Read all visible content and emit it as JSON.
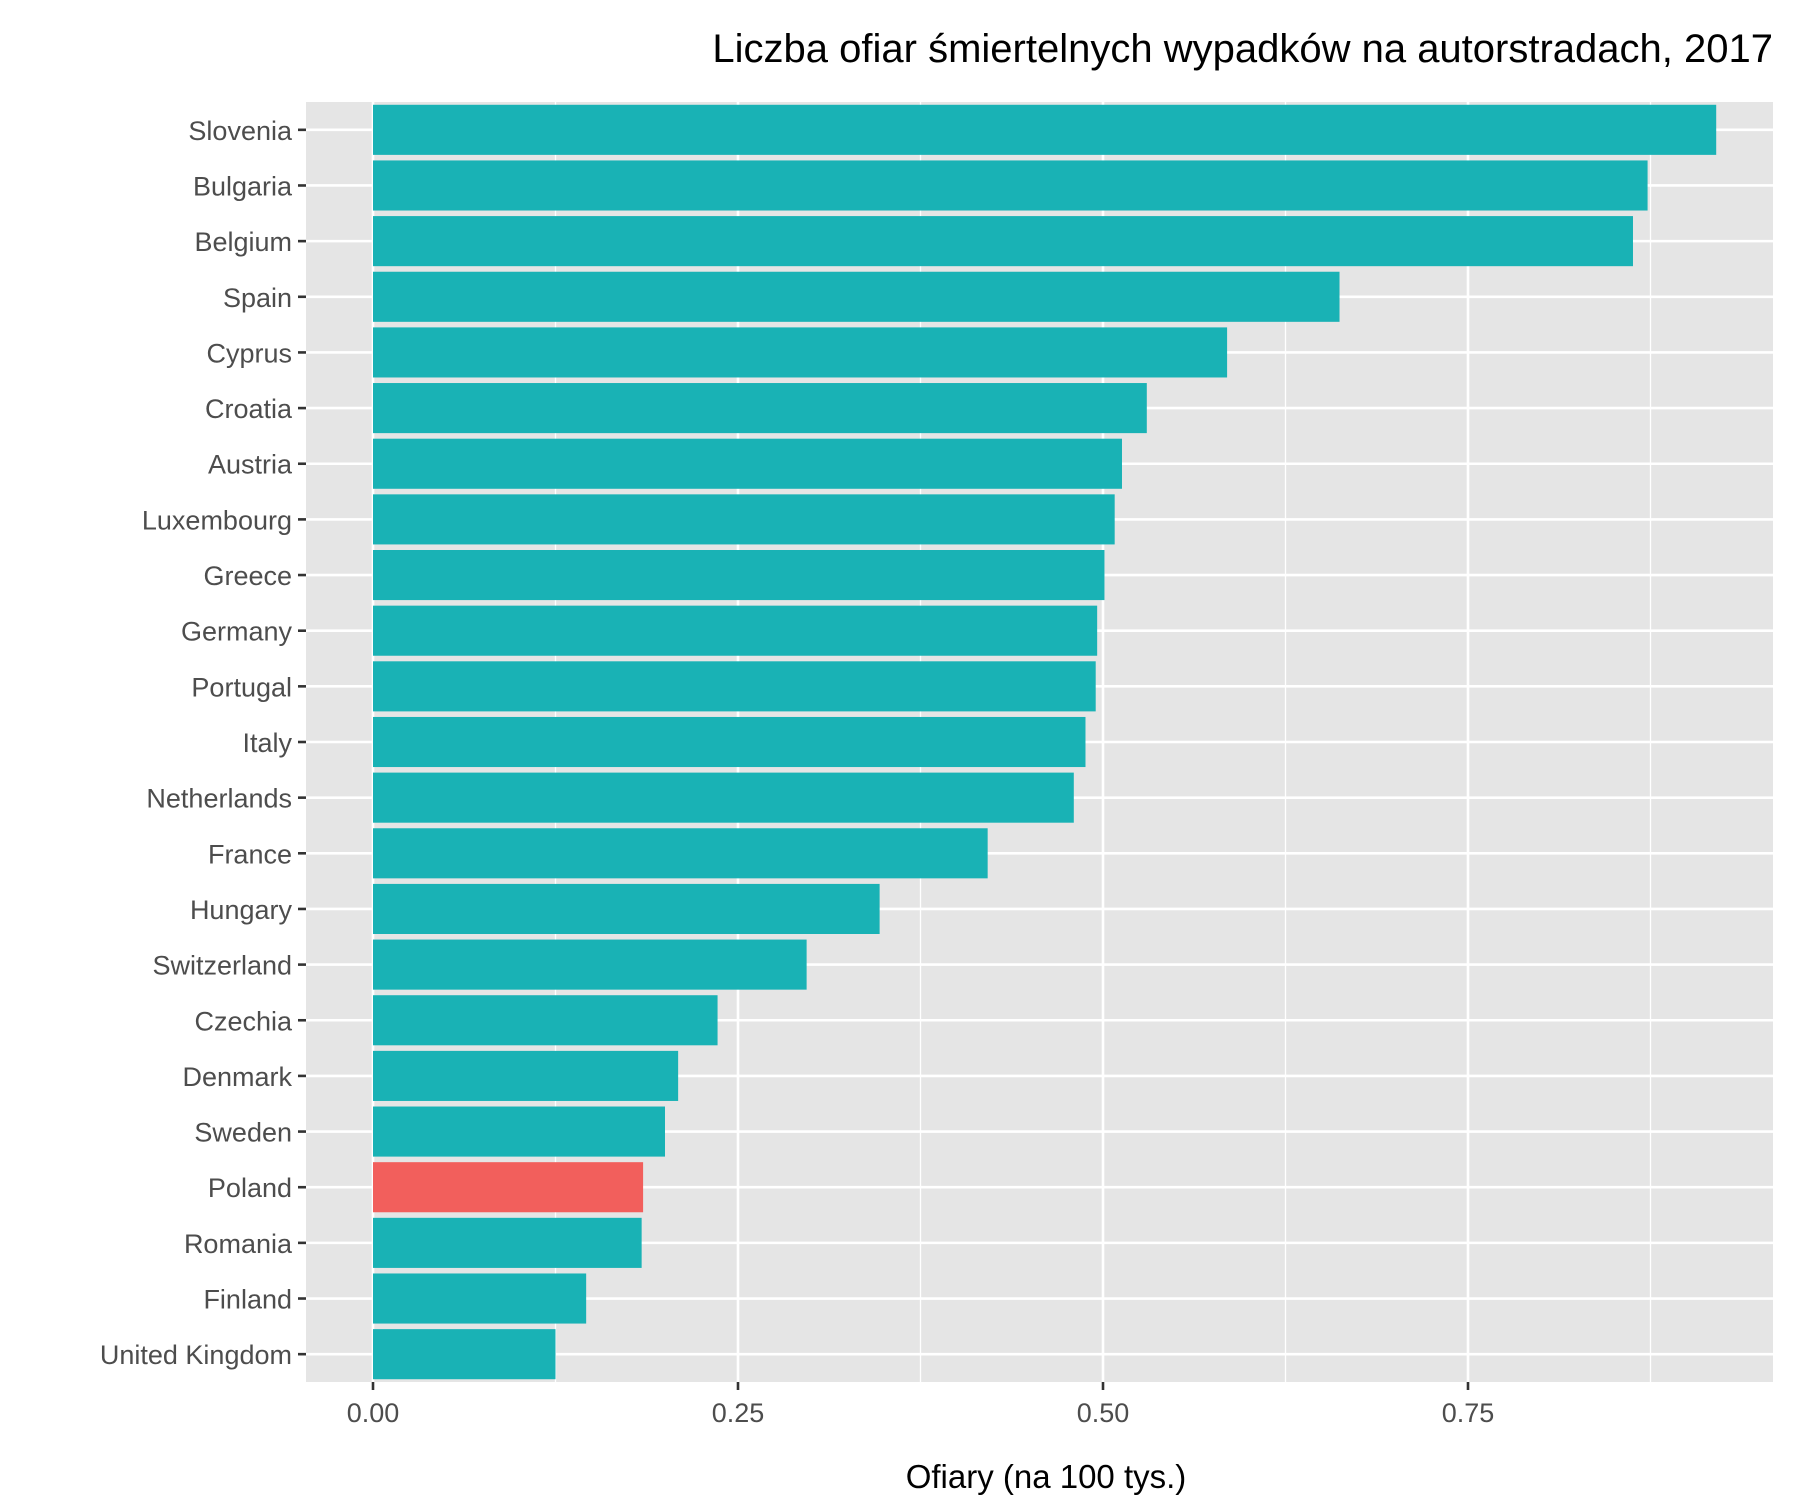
{
  "chart_data": {
    "type": "bar",
    "orientation": "horizontal",
    "title": "Liczba ofiar śmiertelnych wypadków na autorstradach, 2017",
    "xlabel": "Ofiary (na 100 tys.)",
    "ylabel": "",
    "xlim": [
      -0.045,
      0.955
    ],
    "x_ticks": [
      0.0,
      0.25,
      0.5,
      0.75
    ],
    "x_tick_labels": [
      "0.00",
      "0.25",
      "0.50",
      "0.75"
    ],
    "grid": true,
    "legend": "none",
    "colors": {
      "default": "#19b2b5",
      "highlight": "#f25f5c",
      "panel": "#e5e5e5",
      "grid": "#ffffff"
    },
    "categories": [
      "Slovenia",
      "Bulgaria",
      "Belgium",
      "Spain",
      "Cyprus",
      "Croatia",
      "Austria",
      "Luxembourg",
      "Greece",
      "Germany",
      "Portugal",
      "Italy",
      "Netherlands",
      "France",
      "Hungary",
      "Switzerland",
      "Czechia",
      "Denmark",
      "Sweden",
      "Poland",
      "Romania",
      "Finland",
      "United Kingdom"
    ],
    "values": [
      0.92,
      0.873,
      0.863,
      0.662,
      0.585,
      0.53,
      0.513,
      0.508,
      0.501,
      0.496,
      0.495,
      0.488,
      0.48,
      0.421,
      0.347,
      0.297,
      0.236,
      0.209,
      0.2,
      0.185,
      0.184,
      0.146,
      0.125
    ],
    "highlight": [
      "Poland"
    ]
  }
}
